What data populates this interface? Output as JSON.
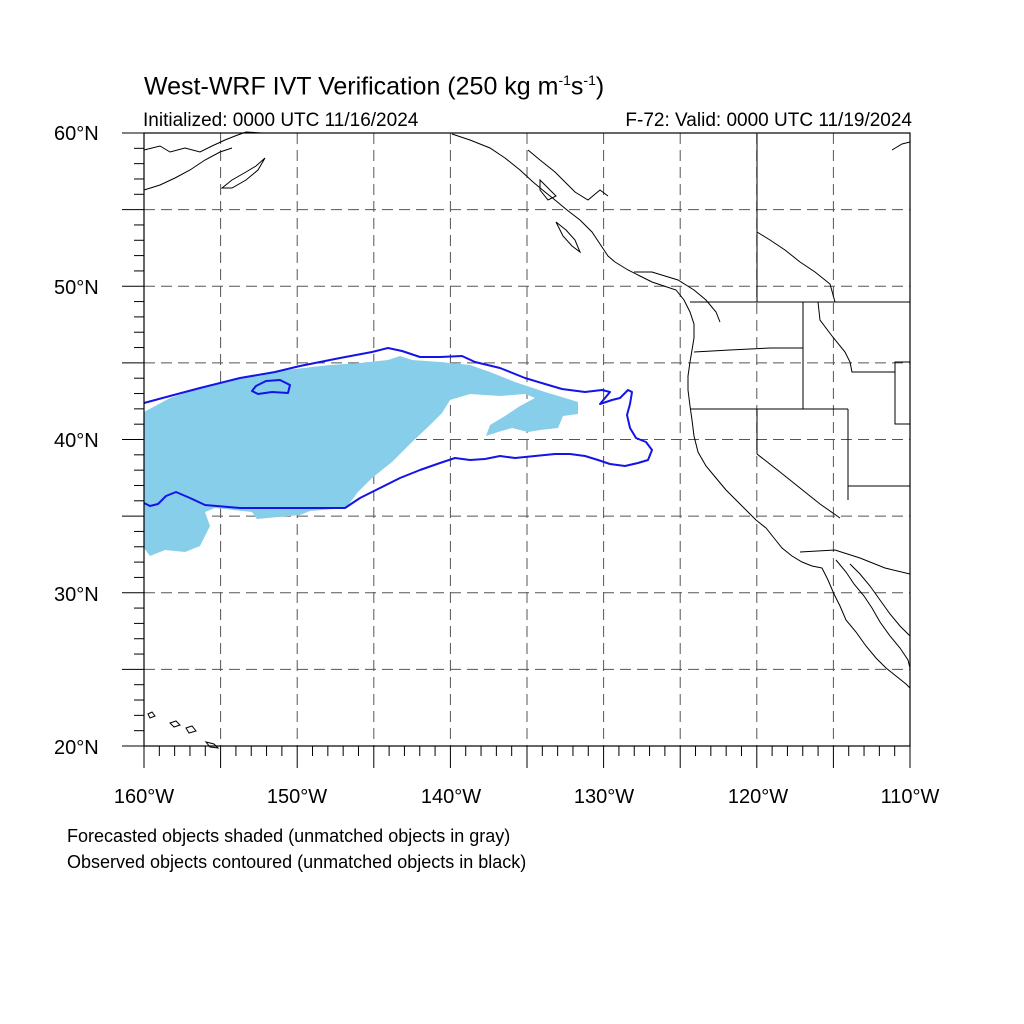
{
  "title": {
    "main": "West-WRF IVT Verification (250 kg m",
    "sup1": "-1",
    "mid": "s",
    "sup2": "-1",
    "end": ")"
  },
  "init_text": "Initialized: 0000 UTC 11/16/2024",
  "valid_text": "F-72: Valid: 0000 UTC 11/19/2024",
  "lat_labels": [
    "60°N",
    "50°N",
    "40°N",
    "30°N",
    "20°N"
  ],
  "lon_labels": [
    "160°W",
    "150°W",
    "140°W",
    "130°W",
    "120°W",
    "110°W"
  ],
  "notes": [
    "Forecasted objects shaded (unmatched objects in gray)",
    "Observed objects contoured (unmatched objects in black)"
  ],
  "colors": {
    "forecast_fill": "#87ceeb",
    "observed_contour": "#1414e6",
    "coastline": "#000000",
    "grid": "#555555"
  },
  "map": {
    "lon_range": [
      -160,
      -110
    ],
    "lat_range": [
      20,
      60
    ],
    "grid_lon_step": 5,
    "grid_lat_step": 5,
    "grid_style": "dashed"
  }
}
